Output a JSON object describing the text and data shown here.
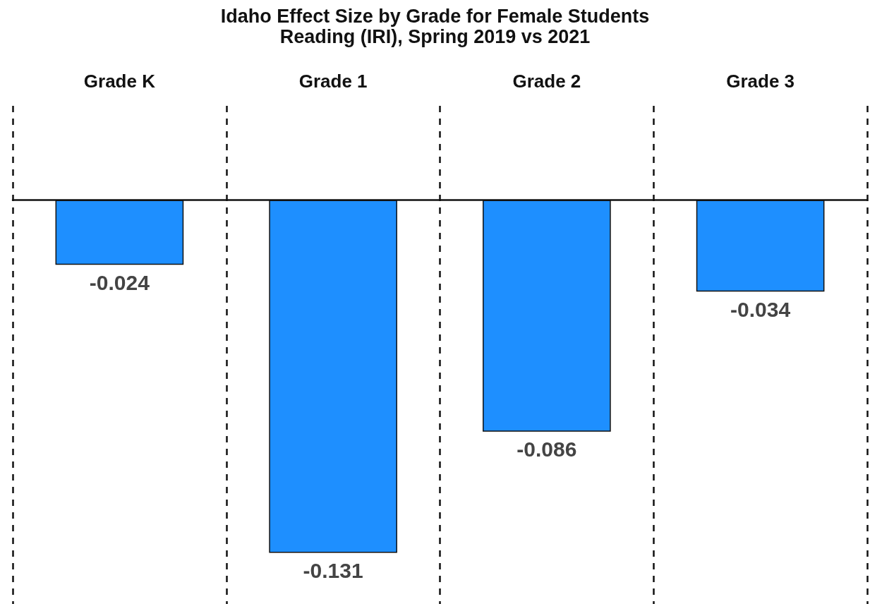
{
  "chart_data": {
    "type": "bar",
    "title": "Idaho Effect Size by Grade for Female Students",
    "subtitle": "Reading (IRI), Spring 2019 vs 2021",
    "categories": [
      "Grade K",
      "Grade 1",
      "Grade 2",
      "Grade 3"
    ],
    "values": [
      -0.024,
      -0.131,
      -0.086,
      -0.034
    ],
    "color": "#1e8fff",
    "ylim": [
      -0.15,
      0.035
    ],
    "data_labels": true,
    "grid": "x",
    "tick_labels": "x"
  }
}
